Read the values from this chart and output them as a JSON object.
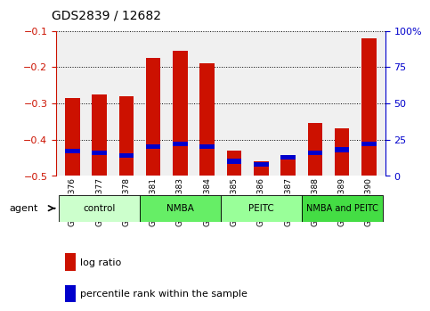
{
  "title": "GDS2839 / 12682",
  "categories": [
    "GSM159376",
    "GSM159377",
    "GSM159378",
    "GSM159381",
    "GSM159383",
    "GSM159384",
    "GSM159385",
    "GSM159386",
    "GSM159387",
    "GSM159388",
    "GSM159389",
    "GSM159390"
  ],
  "log_ratio": [
    -0.285,
    -0.275,
    -0.28,
    -0.175,
    -0.155,
    -0.19,
    -0.43,
    -0.46,
    -0.445,
    -0.355,
    -0.37,
    -0.12
  ],
  "percentile_rank": [
    17,
    16,
    14,
    20,
    22,
    20,
    10,
    8,
    13,
    16,
    18,
    22
  ],
  "bar_color": "#cc1100",
  "marker_color": "#0000cc",
  "ylim_left": [
    -0.5,
    -0.1
  ],
  "ylim_right": [
    0,
    100
  ],
  "yticks_left": [
    -0.5,
    -0.4,
    -0.3,
    -0.2,
    -0.1
  ],
  "yticks_right": [
    0,
    25,
    50,
    75,
    100
  ],
  "groups": [
    {
      "label": "control",
      "start": 0,
      "end": 3,
      "color": "#ccffcc"
    },
    {
      "label": "NMBA",
      "start": 3,
      "end": 6,
      "color": "#66ee66"
    },
    {
      "label": "PEITC",
      "start": 6,
      "end": 9,
      "color": "#99ff99"
    },
    {
      "label": "NMBA and PEITC",
      "start": 9,
      "end": 12,
      "color": "#44dd44"
    }
  ],
  "agent_label": "agent",
  "legend_logratio": "log ratio",
  "legend_percentile": "percentile rank within the sample",
  "bar_width": 0.55,
  "title_fontsize": 10,
  "axis_color_left": "#cc1100",
  "axis_color_right": "#0000cc",
  "background_color": "#ffffff",
  "plot_bg_color": "#f0f0f0"
}
